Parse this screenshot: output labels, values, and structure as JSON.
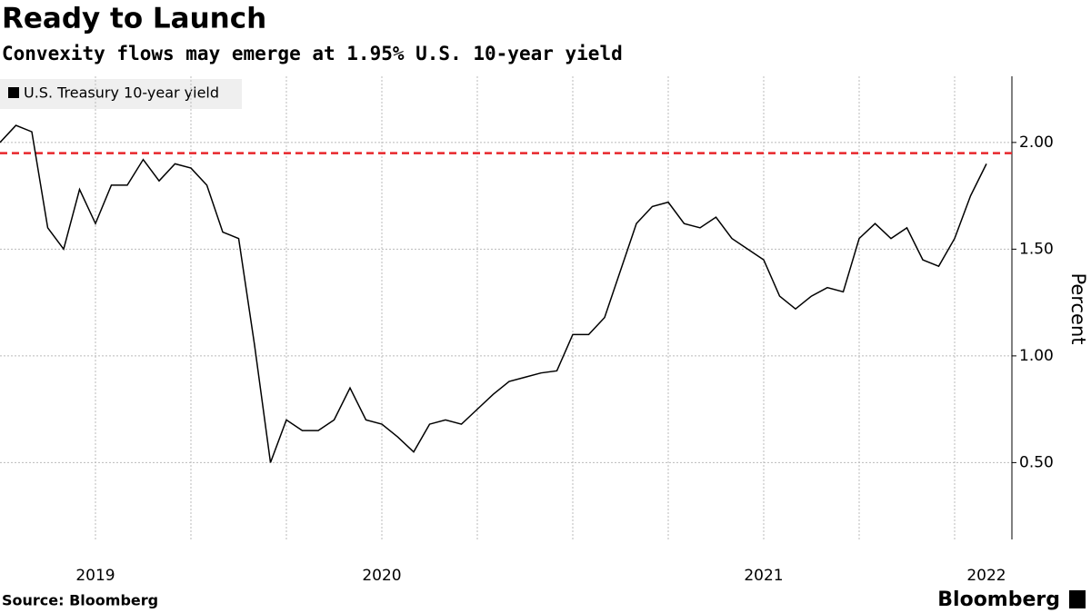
{
  "chart_data": {
    "type": "line",
    "title": "Ready to Launch",
    "subtitle": "Convexity flows may emerge at 1.95% U.S. 10-year yield",
    "y_axis_label": "Percent",
    "source": "Source: Bloomberg",
    "brand": "Bloomberg",
    "categories": [
      null,
      null,
      null,
      null,
      null,
      null,
      "2019",
      null,
      null,
      null,
      null,
      null,
      null,
      null,
      null,
      null,
      null,
      null,
      null,
      null,
      null,
      null,
      null,
      null,
      "2020",
      null,
      null,
      null,
      null,
      null,
      null,
      null,
      null,
      null,
      null,
      null,
      null,
      null,
      null,
      null,
      null,
      null,
      null,
      null,
      null,
      null,
      null,
      null,
      "2021",
      null,
      null,
      null,
      null,
      null,
      null,
      null,
      null,
      null,
      null,
      null,
      null,
      null,
      "2022"
    ],
    "series": [
      {
        "name": "U.S. Treasury 10-year yield",
        "color": "#000000",
        "values": [
          2.0,
          2.08,
          2.05,
          1.6,
          1.5,
          1.78,
          1.62,
          1.8,
          1.8,
          1.92,
          1.82,
          1.9,
          1.88,
          1.8,
          1.58,
          1.55,
          1.05,
          0.5,
          0.7,
          0.65,
          0.65,
          0.7,
          0.85,
          0.7,
          0.68,
          0.62,
          0.55,
          0.68,
          0.7,
          0.68,
          0.75,
          0.82,
          0.88,
          0.9,
          0.92,
          0.93,
          1.1,
          1.1,
          1.18,
          1.4,
          1.62,
          1.7,
          1.72,
          1.62,
          1.6,
          1.65,
          1.55,
          1.5,
          1.45,
          1.28,
          1.22,
          1.28,
          1.32,
          1.3,
          1.55,
          1.62,
          1.55,
          1.6,
          1.45,
          1.42,
          1.55,
          1.75,
          1.9
        ]
      }
    ],
    "threshold": {
      "value": 1.95,
      "color": "#e8262b"
    },
    "ylim": [
      0.14,
      2.31
    ],
    "yticks": [
      {
        "value": 0.5,
        "label": "0.50"
      },
      {
        "value": 1,
        "label": "1.00"
      },
      {
        "value": 1.5,
        "label": "1.50"
      },
      {
        "value": 2,
        "label": "2.00"
      }
    ],
    "grid": true
  }
}
